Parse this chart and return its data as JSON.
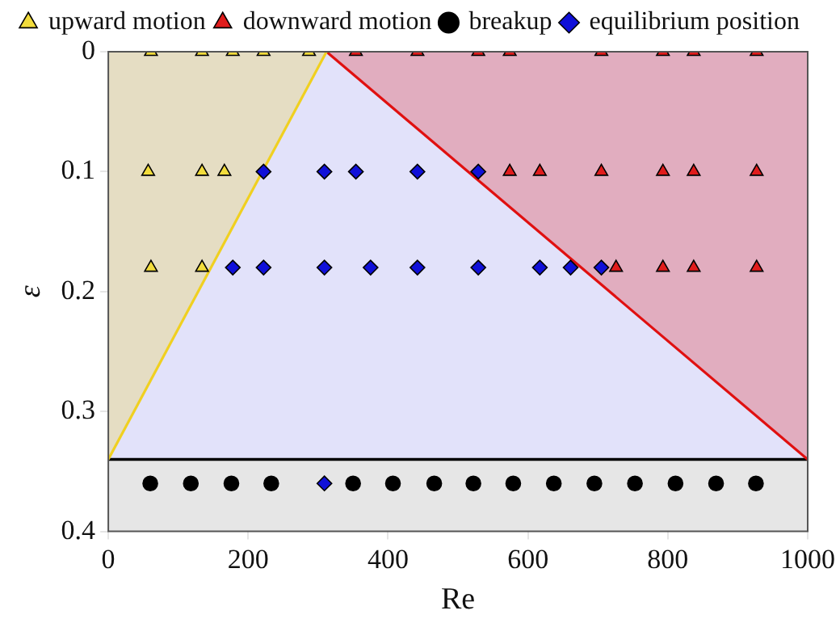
{
  "chart_data": {
    "type": "scatter",
    "xlabel": "Re",
    "ylabel": "ε",
    "xlim": [
      0,
      1000
    ],
    "xticks": [
      0,
      200,
      400,
      600,
      800,
      1000
    ],
    "ylim": [
      0.4,
      0
    ],
    "yticks": [
      0,
      0.1,
      0.2,
      0.3,
      0.4
    ],
    "grid": false,
    "legend": "top",
    "series": [
      {
        "name": "upward motion",
        "color": "#f2dc3c",
        "marker": "triangle",
        "x": [
          61,
          134,
          178,
          222,
          287,
          57,
          134,
          166,
          61,
          134
        ],
        "values": [
          0,
          0,
          0,
          0,
          0,
          0.1,
          0.1,
          0.1,
          0.18,
          0.18
        ]
      },
      {
        "name": "downward motion",
        "color": "#e01c1c",
        "marker": "triangle",
        "x": [
          354,
          442,
          529,
          574,
          705,
          793,
          837,
          927,
          574,
          617,
          705,
          793,
          837,
          927,
          726,
          793,
          837,
          927
        ],
        "values": [
          0,
          0,
          0,
          0,
          0,
          0,
          0,
          0,
          0.1,
          0.1,
          0.1,
          0.1,
          0.1,
          0.1,
          0.18,
          0.18,
          0.18,
          0.18
        ]
      },
      {
        "name": "breakup",
        "color": "#000000",
        "marker": "circle",
        "x": [
          60,
          118,
          176,
          233,
          350,
          407,
          466,
          522,
          579,
          637,
          695,
          753,
          811,
          869,
          926
        ],
        "values": [
          0.36,
          0.36,
          0.36,
          0.36,
          0.36,
          0.36,
          0.36,
          0.36,
          0.36,
          0.36,
          0.36,
          0.36,
          0.36,
          0.36,
          0.36
        ]
      },
      {
        "name": "equilibrium position",
        "color": "#1010d8",
        "marker": "diamond",
        "x": [
          222,
          309,
          354,
          442,
          529,
          178,
          222,
          309,
          375,
          442,
          529,
          617,
          661,
          705,
          309
        ],
        "values": [
          0.1,
          0.1,
          0.1,
          0.1,
          0.1,
          0.18,
          0.18,
          0.18,
          0.18,
          0.18,
          0.18,
          0.18,
          0.18,
          0.18,
          0.36
        ]
      },
      {
        "type": "area",
        "color": "#f0d020",
        "x": [
          0,
          312
        ],
        "values": [
          0.34,
          0
        ]
      },
      {
        "type": "area",
        "color": "#e01010",
        "x": [
          312,
          1000
        ],
        "values": [
          0,
          0.34
        ]
      }
    ],
    "bands": [
      {
        "axis": "y",
        "from": 0,
        "to": 0.34,
        "color": "#e2e2fa"
      },
      {
        "axis": "y",
        "from": 0.34,
        "to": 0.4,
        "color": "#e6e6e6"
      }
    ],
    "ref_lines": [
      {
        "axis": "y",
        "value": 0.34,
        "color": "#000000"
      }
    ]
  }
}
